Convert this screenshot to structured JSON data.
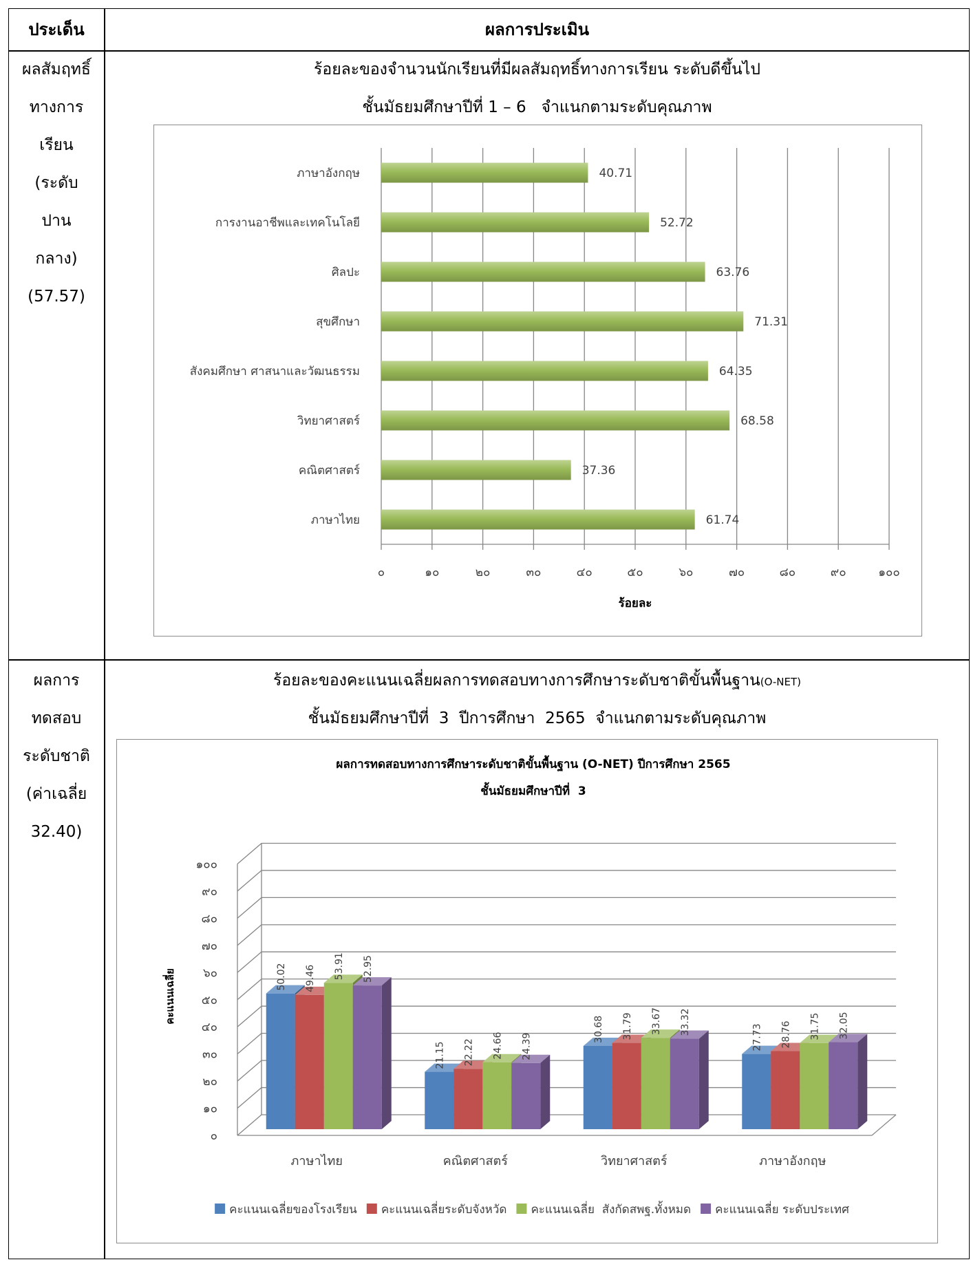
{
  "table": {
    "header": {
      "topic": "ประเด็น",
      "evaluation": "ผลการประเมิน"
    },
    "rows": [
      {
        "topic_lines": [
          "ผลสัมฤทธิ์",
          "ทางการ",
          "เรียน",
          "(ระดับ",
          "ปาน",
          "กลาง)",
          "(57.57)"
        ],
        "heading_line1": "ร้อยละของจำนวนนักเรียนที่มีผลสัมฤทธิ์ทางการเรียน ระดับดีขึ้นไป",
        "heading_line2": "ชั้นมัธยมศึกษาปีที่ 1 – 6   จำแนกตามระดับคุณภาพ"
      },
      {
        "topic_lines": [
          "ผลการ",
          "ทดสอบ",
          "ระดับชาติ",
          "(ค่าเฉลี่ย",
          "32.40)"
        ],
        "heading_line1": "ร้อยละของคะแนนเฉลี่ยผลการทดสอบทางการศึกษาระดับชาติขั้นพื้นฐาน",
        "heading_line1_suffix": "(O-NET)",
        "heading_line2": "ชั้นมัธยมศึกษาปีที่  3  ปีการศึกษา  2565  จำแนกตามระดับคุณภาพ"
      }
    ]
  },
  "chart_data": [
    {
      "type": "bar",
      "orientation": "horizontal",
      "categories": [
        "ภาษาไทย",
        "คณิตศาสตร์",
        "วิทยาศาสตร์",
        "สังคมศึกษา ศาสนาและวัฒนธรรม",
        "สุขศึกษา",
        "ศิลปะ",
        "การงานอาชีพและเทคโนโลยี",
        "ภาษาอังกฤษ"
      ],
      "values": [
        61.74,
        37.36,
        68.58,
        64.35,
        71.31,
        63.76,
        52.72,
        40.71
      ],
      "xlabel": "ร้อยละ",
      "xlim": [
        0,
        100
      ],
      "x_tick_labels": [
        "๐",
        "๑๐",
        "๒๐",
        "๓๐",
        "๔๐",
        "๕๐",
        "๖๐",
        "๗๐",
        "๘๐",
        "๙๐",
        "๑๐๐"
      ],
      "grid": true,
      "legend": "none",
      "bar_color": "#9bbb59"
    },
    {
      "type": "bar",
      "style": "3d-clustered-column",
      "title": "ผลการทดสอบทางการศึกษาระดับชาติขั้นพื้นฐาน (O-NET) ปีการศึกษา 2565",
      "subtitle": "ชั้นมัธยมศึกษาปีที่  3",
      "categories": [
        "ภาษาไทย",
        "คณิตศาสตร์",
        "วิทยาศาสตร์",
        "ภาษาอังกฤษ"
      ],
      "series": [
        {
          "name": "คะแนนเฉลี่ยของโรงเรียน",
          "values": [
            50.02,
            21.15,
            30.68,
            27.73
          ],
          "color": "#4f81bd"
        },
        {
          "name": "คะแนนเฉลี่ยระดับจังหวัด",
          "values": [
            49.46,
            22.22,
            31.79,
            28.76
          ],
          "color": "#c0504d"
        },
        {
          "name": "คะแนนเฉลี่ย  สังกัดสพฐ.ทั้งหมด",
          "values": [
            53.91,
            24.66,
            33.67,
            31.75
          ],
          "color": "#9bbb59"
        },
        {
          "name": "คะแนนเฉลี่ย ระดับประเทศ",
          "values": [
            52.95,
            24.39,
            33.32,
            32.05
          ],
          "color": "#8064a2"
        }
      ],
      "ylabel": "คะแนนเฉลี่ย",
      "ylim": [
        0,
        100
      ],
      "y_tick_labels": [
        "๐",
        "๑๐",
        "๒๐",
        "๓๐",
        "๔๐",
        "๕๐",
        "๖๐",
        "๗๐",
        "๘๐",
        "๙๐",
        "๑๐๐"
      ],
      "grid": true,
      "legend": "bottom"
    }
  ]
}
